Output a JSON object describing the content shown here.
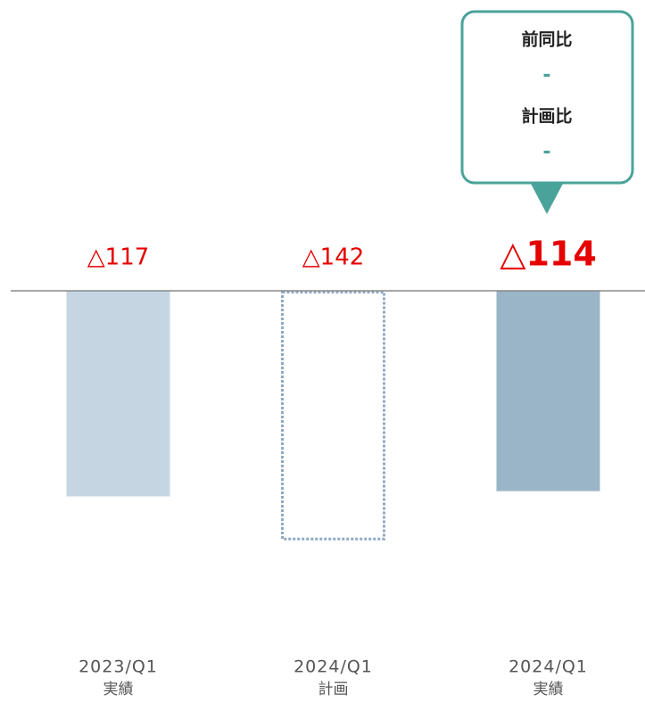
{
  "chart_data": {
    "type": "bar",
    "categories": [
      "2023/Q1",
      "2024/Q1",
      "2024/Q1"
    ],
    "sub_labels": [
      "実績",
      "計画",
      "実績"
    ],
    "values": [
      -117,
      -142,
      -114
    ],
    "value_labels": [
      "△117",
      "△142",
      "△114"
    ],
    "bar_styles": [
      {
        "fill": "#c5d6e2"
      },
      {
        "stroke": "#8fa9c4",
        "dashed": true
      },
      {
        "fill": "#9ab4c8"
      }
    ],
    "label_color": "#e60000",
    "highlight": 2,
    "ylim": [
      -200,
      0
    ],
    "callout": {
      "color": "#4aa39a",
      "items": [
        {
          "label": "前同比",
          "value": "-"
        },
        {
          "label": "計画比",
          "value": "-"
        }
      ]
    }
  }
}
